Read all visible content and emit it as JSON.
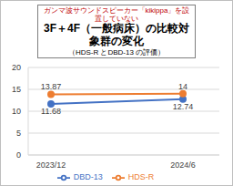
{
  "chart_data": {
    "type": "line",
    "annotations": [
      "ガンマ波サウンドスピーカー「kikippa」を設置していない"
    ],
    "title": "3F＋4F（一般病床）の比較対象群の変化",
    "subtitle": "（HDS-R とDBD-13 の評価）",
    "categories": [
      "2023/12",
      "2024/6"
    ],
    "series": [
      {
        "name": "DBD-13",
        "color": "#4472c4",
        "marker": "circle",
        "line_style": "solid",
        "values": [
          11.68,
          12.74
        ]
      },
      {
        "name": "HDS-R",
        "color": "#ed7d31",
        "marker": "circle",
        "line_style": "solid",
        "values": [
          13.87,
          14
        ]
      }
    ],
    "ylim": [
      0,
      20
    ],
    "yticks": [
      0,
      5,
      10,
      15,
      20
    ],
    "grid": true,
    "legend": "bottom",
    "data_labels": true
  }
}
